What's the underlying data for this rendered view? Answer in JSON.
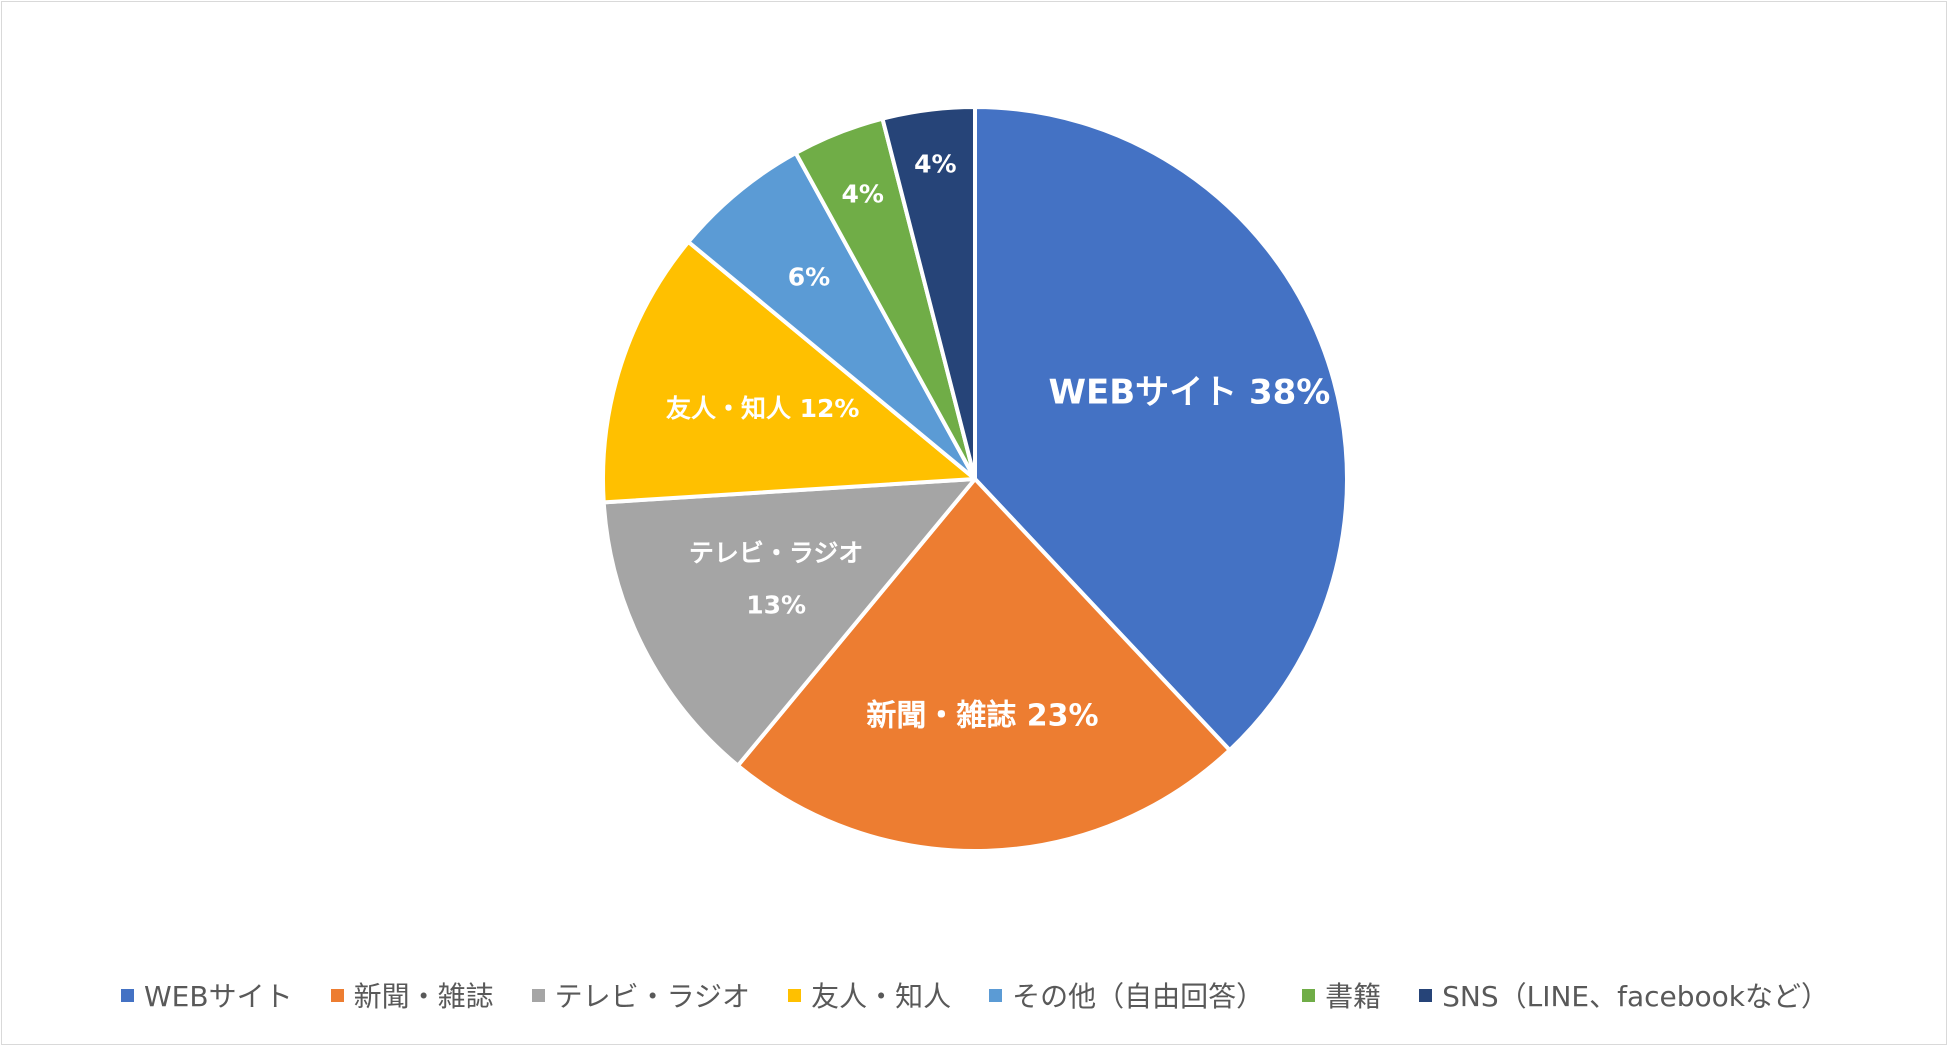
{
  "chart_data": {
    "type": "pie",
    "title": "",
    "legend_position": "bottom",
    "slices": [
      {
        "name": "WEBサイト",
        "value": 38,
        "label_lines": [
          "WEBサイト 38%"
        ],
        "color": "#4472c4"
      },
      {
        "name": "新聞・雑誌",
        "value": 23,
        "label_lines": [
          "新聞・雑誌 23%"
        ],
        "color": "#ed7d31"
      },
      {
        "name": "テレビ・ラジオ",
        "value": 13,
        "label_lines": [
          "テレビ・ラジオ",
          "13%"
        ],
        "color": "#a5a5a5"
      },
      {
        "name": "友人・知人",
        "value": 12,
        "label_lines": [
          "友人・知人 12%"
        ],
        "color": "#ffc000"
      },
      {
        "name": "その他（自由回答）",
        "value": 6,
        "label_lines": [
          "6%"
        ],
        "color": "#5b9bd5"
      },
      {
        "name": "書籍",
        "value": 4,
        "label_lines": [
          "4%"
        ],
        "color": "#70ad47"
      },
      {
        "name": "SNS（LINE、facebookなど）",
        "value": 4,
        "label_lines": [
          "4%"
        ],
        "color": "#264478"
      }
    ]
  }
}
